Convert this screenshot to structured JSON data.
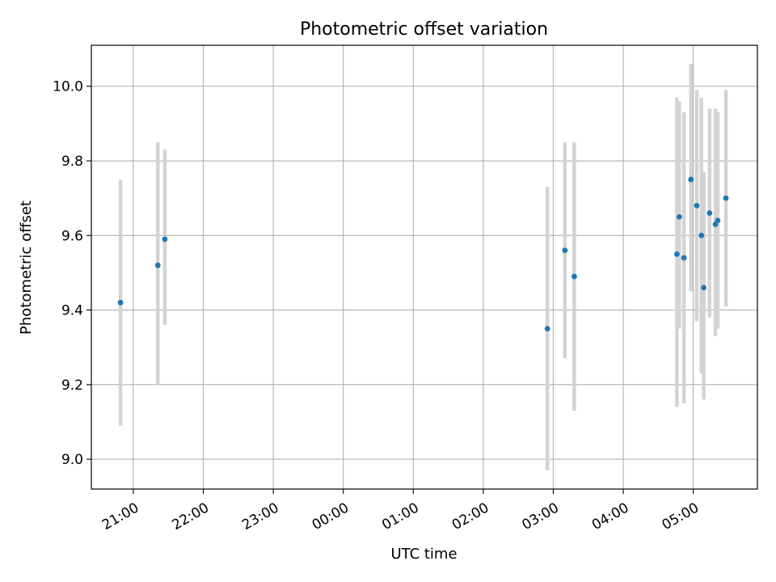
{
  "chart_data": {
    "type": "scatter",
    "title": "Photometric offset variation",
    "xlabel": "UTC time",
    "ylabel": "Photometric offset",
    "x_axis": "time (UTC, HH:MM)",
    "xlim": [
      "20:24",
      "05:55"
    ],
    "ylim": [
      8.92,
      10.11
    ],
    "xticks": [
      "21:00",
      "22:00",
      "23:00",
      "00:00",
      "01:00",
      "02:00",
      "03:00",
      "04:00",
      "05:00"
    ],
    "yticks": [
      "9.0",
      "9.2",
      "9.4",
      "9.6",
      "9.8",
      "10.0"
    ],
    "grid": true,
    "legend": "none",
    "colors": {
      "points": "#1f77b4",
      "error_bars": "#d3d3d3",
      "grid": "#b0b0b0"
    },
    "points": [
      {
        "time": "20:49",
        "y": 9.42,
        "ymin": 9.09,
        "ymax": 9.75
      },
      {
        "time": "21:21",
        "y": 9.52,
        "ymin": 9.2,
        "ymax": 9.85
      },
      {
        "time": "21:27",
        "y": 9.59,
        "ymin": 9.36,
        "ymax": 9.83
      },
      {
        "time": "02:55",
        "y": 9.35,
        "ymin": 8.97,
        "ymax": 9.73
      },
      {
        "time": "03:10",
        "y": 9.56,
        "ymin": 9.27,
        "ymax": 9.85
      },
      {
        "time": "03:18",
        "y": 9.49,
        "ymin": 9.13,
        "ymax": 9.85
      },
      {
        "time": "04:46",
        "y": 9.55,
        "ymin": 9.14,
        "ymax": 9.97
      },
      {
        "time": "04:48",
        "y": 9.65,
        "ymin": 9.35,
        "ymax": 9.96
      },
      {
        "time": "04:52",
        "y": 9.54,
        "ymin": 9.15,
        "ymax": 9.93
      },
      {
        "time": "04:58",
        "y": 9.75,
        "ymin": 9.45,
        "ymax": 10.06
      },
      {
        "time": "05:03",
        "y": 9.68,
        "ymin": 9.37,
        "ymax": 9.99
      },
      {
        "time": "05:07",
        "y": 9.6,
        "ymin": 9.23,
        "ymax": 9.97
      },
      {
        "time": "05:09",
        "y": 9.46,
        "ymin": 9.16,
        "ymax": 9.77
      },
      {
        "time": "05:14",
        "y": 9.66,
        "ymin": 9.38,
        "ymax": 9.94
      },
      {
        "time": "05:19",
        "y": 9.63,
        "ymin": 9.33,
        "ymax": 9.94
      },
      {
        "time": "05:21",
        "y": 9.64,
        "ymin": 9.35,
        "ymax": 9.93
      },
      {
        "time": "05:28",
        "y": 9.7,
        "ymin": 9.41,
        "ymax": 9.99
      }
    ]
  }
}
